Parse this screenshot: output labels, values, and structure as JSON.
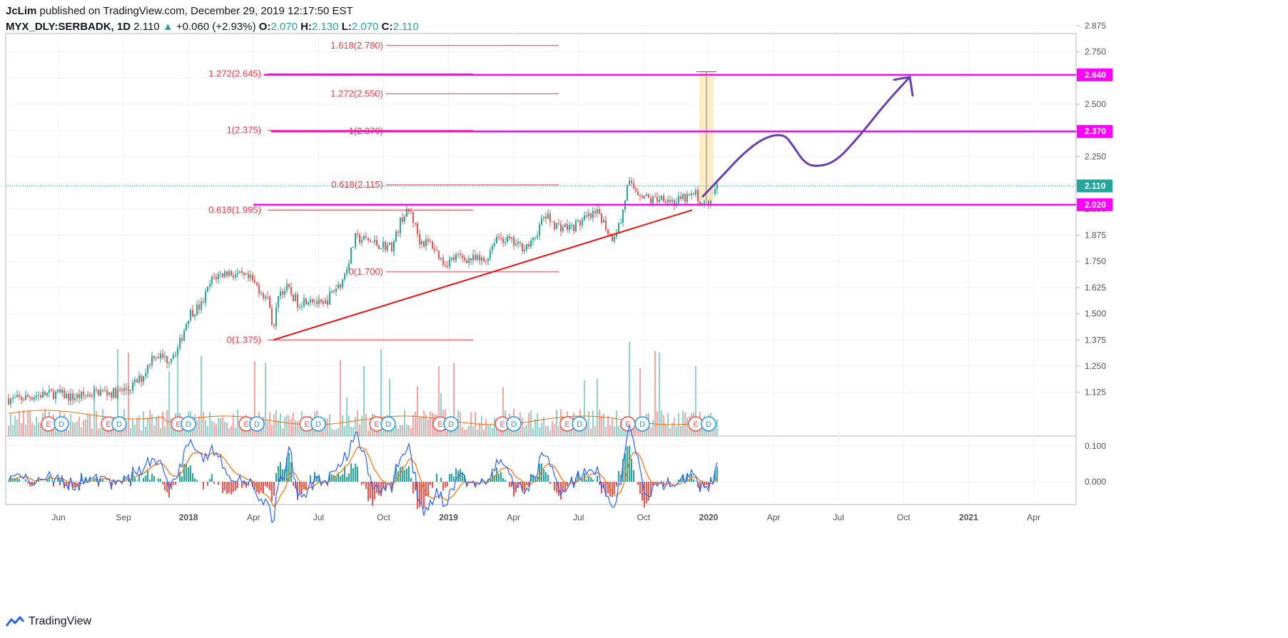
{
  "header": {
    "author": "JcLim",
    "published_text": "published on TradingView.com, December 29, 2019 12:17:50 EST",
    "symbol": "MYX_DLY:SERBADK, 1D",
    "last": "2.110",
    "change": "+0.060 (+2.93%)",
    "o_label": "O:",
    "o_value": "2.070",
    "h_label": "H:",
    "h_value": "2.130",
    "l_label": "L:",
    "l_value": "2.070",
    "c_label": "C:",
    "c_value": "2.110"
  },
  "brand": {
    "name": "TradingView"
  },
  "colors": {
    "up": "#26a69a",
    "down": "#ef5350",
    "fib": "#f23645",
    "magenta": "#ff00ff",
    "trend": "#f01010",
    "projection": "#6a3fb5",
    "macd": "#2962ff",
    "signal": "#ff6d00",
    "box": "#fde9b8",
    "grid": "#f0f3fa",
    "axis": "#50535e"
  },
  "chart_data": {
    "type": "candlestick",
    "price_axis": {
      "ticks": [
        "2.875",
        "2.750",
        "2.625",
        "2.500",
        "2.375",
        "2.250",
        "2.125",
        "2.000",
        "1.875",
        "1.750",
        "1.625",
        "1.500",
        "1.375",
        "1.250",
        "1.125"
      ],
      "range": [
        1.06,
        2.93
      ]
    },
    "macd_axis": {
      "ticks": [
        "0.100",
        "0.000"
      ],
      "range": [
        -0.06,
        0.11
      ]
    },
    "time_axis": {
      "labels": [
        {
          "text": "Jun",
          "bold": false
        },
        {
          "text": "Sep",
          "bold": false
        },
        {
          "text": "2018",
          "bold": true
        },
        {
          "text": "Apr",
          "bold": false
        },
        {
          "text": "Jul",
          "bold": false
        },
        {
          "text": "Oct",
          "bold": false
        },
        {
          "text": "2019",
          "bold": true
        },
        {
          "text": "Apr",
          "bold": false
        },
        {
          "text": "Jul",
          "bold": false
        },
        {
          "text": "Oct",
          "bold": false
        },
        {
          "text": "2020",
          "bold": true
        },
        {
          "text": "Apr",
          "bold": false
        },
        {
          "text": "Jul",
          "bold": false
        },
        {
          "text": "Oct",
          "bold": false
        },
        {
          "text": "2021",
          "bold": true
        },
        {
          "text": "Apr",
          "bold": false
        }
      ]
    },
    "price_keypoints": [
      [
        0,
        1.1
      ],
      [
        20,
        1.09
      ],
      [
        50,
        1.11
      ],
      [
        80,
        1.12
      ],
      [
        100,
        1.1
      ],
      [
        120,
        1.11
      ],
      [
        140,
        1.13
      ],
      [
        160,
        1.12
      ],
      [
        180,
        1.14
      ],
      [
        200,
        1.2
      ],
      [
        215,
        1.31
      ],
      [
        235,
        1.28
      ],
      [
        250,
        1.34
      ],
      [
        265,
        1.5
      ],
      [
        282,
        1.54
      ],
      [
        298,
        1.67
      ],
      [
        318,
        1.7
      ],
      [
        335,
        1.68
      ],
      [
        352,
        1.66
      ],
      [
        368,
        1.6
      ],
      [
        378,
        1.55
      ],
      [
        383,
        1.4
      ],
      [
        390,
        1.6
      ],
      [
        402,
        1.62
      ],
      [
        418,
        1.55
      ],
      [
        435,
        1.58
      ],
      [
        452,
        1.53
      ],
      [
        465,
        1.6
      ],
      [
        480,
        1.66
      ],
      [
        498,
        1.86
      ],
      [
        515,
        1.85
      ],
      [
        530,
        1.83
      ],
      [
        550,
        1.82
      ],
      [
        563,
        1.96
      ],
      [
        575,
        1.99
      ],
      [
        588,
        1.85
      ],
      [
        605,
        1.83
      ],
      [
        622,
        1.74
      ],
      [
        640,
        1.77
      ],
      [
        660,
        1.76
      ],
      [
        680,
        1.75
      ],
      [
        695,
        1.87
      ],
      [
        712,
        1.85
      ],
      [
        728,
        1.82
      ],
      [
        745,
        1.83
      ],
      [
        763,
        1.97
      ],
      [
        780,
        1.92
      ],
      [
        800,
        1.91
      ],
      [
        820,
        1.95
      ],
      [
        840,
        1.98
      ],
      [
        857,
        1.86
      ],
      [
        870,
        1.94
      ],
      [
        880,
        2.12
      ],
      [
        895,
        2.08
      ],
      [
        912,
        2.04
      ],
      [
        930,
        2.06
      ],
      [
        945,
        2.03
      ],
      [
        960,
        2.05
      ],
      [
        975,
        2.07
      ],
      [
        985,
        2.02
      ],
      [
        995,
        2.05
      ],
      [
        1005,
        2.11
      ]
    ],
    "fibonacci": {
      "set_a": [
        "1.618(2.780)",
        "1.272(2.550)",
        "1(2.370)",
        "0.618(2.115)",
        "0(1.700)"
      ],
      "set_b": [
        "1.272(2.645)",
        "1(2.375)",
        "0.618(1.995)",
        "0(1.375)"
      ]
    },
    "horizontal_levels": [
      {
        "value": 2.64,
        "label": "2.640"
      },
      {
        "value": 2.37,
        "label": "2.370"
      },
      {
        "value": 2.02,
        "label": "2.020"
      }
    ],
    "current_price": {
      "value": 2.11,
      "label": "2.110"
    },
    "trendline": {
      "from": [
        383,
        1.375
      ],
      "to": [
        970,
        1.995
      ]
    },
    "projection_path": [
      [
        985,
        2.06
      ],
      [
        1010,
        2.15
      ],
      [
        1040,
        2.26
      ],
      [
        1070,
        2.34
      ],
      [
        1098,
        2.36
      ],
      [
        1112,
        2.3
      ],
      [
        1125,
        2.23
      ],
      [
        1140,
        2.2
      ],
      [
        1170,
        2.22
      ],
      [
        1205,
        2.35
      ],
      [
        1240,
        2.5
      ],
      [
        1275,
        2.63
      ]
    ],
    "highlight_box": {
      "x_from": 980,
      "x_to": 1000,
      "top": 2.655,
      "bottom": 2.04
    },
    "events": [
      {
        "x": 68,
        "t": "E"
      },
      {
        "x": 86,
        "t": "D"
      },
      {
        "x": 152,
        "t": "E"
      },
      {
        "x": 167,
        "t": "D"
      },
      {
        "x": 250,
        "t": "E"
      },
      {
        "x": 264,
        "t": "D"
      },
      {
        "x": 345,
        "t": "E"
      },
      {
        "x": 360,
        "t": "D"
      },
      {
        "x": 430,
        "t": "E"
      },
      {
        "x": 446,
        "t": "D"
      },
      {
        "x": 528,
        "t": "E"
      },
      {
        "x": 544,
        "t": "D"
      },
      {
        "x": 617,
        "t": "E"
      },
      {
        "x": 632,
        "t": "D"
      },
      {
        "x": 704,
        "t": "E"
      },
      {
        "x": 720,
        "t": "D"
      },
      {
        "x": 795,
        "t": "E"
      },
      {
        "x": 812,
        "t": "D"
      },
      {
        "x": 880,
        "t": "E"
      },
      {
        "x": 900,
        "t": "D"
      },
      {
        "x": 975,
        "t": "E"
      },
      {
        "x": 993,
        "t": "D"
      }
    ]
  }
}
